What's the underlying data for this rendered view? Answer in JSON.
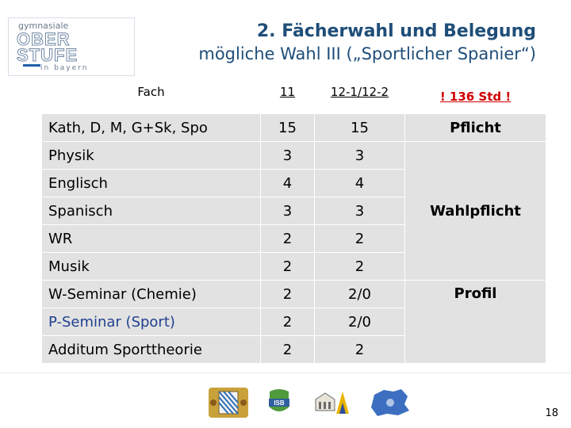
{
  "logo": {
    "line1": "gymnasiale",
    "line2": "OBER",
    "line3": "STUFE",
    "line4": "in bayern"
  },
  "title": {
    "line1": "2. Fächerwahl und Belegung",
    "line2": "mögliche Wahl  III („Sportlicher Spanier“)"
  },
  "table": {
    "headers": [
      "Fach",
      "11",
      "12-1/12-2",
      "! 136 Std !"
    ],
    "rows": [
      {
        "fach": "Kath, D, M, G+Sk, Spo",
        "y11": "15",
        "y12": "15"
      },
      {
        "fach": "Physik",
        "y11": "3",
        "y12": "3"
      },
      {
        "fach": "Englisch",
        "y11": "4",
        "y12": "4"
      },
      {
        "fach": "Spanisch",
        "y11": "3",
        "y12": "3"
      },
      {
        "fach": "WR",
        "y11": "2",
        "y12": "2"
      },
      {
        "fach": "Musik",
        "y11": "2",
        "y12": "2"
      },
      {
        "fach": "W-Seminar (Chemie)",
        "y11": "2",
        "y12": "2/0"
      },
      {
        "fach": "P-Seminar (Sport)",
        "y11": "2",
        "y12": "2/0"
      },
      {
        "fach": "Additum Sporttheorie",
        "y11": "2",
        "y12": "2"
      }
    ],
    "categories": [
      "Pflicht",
      "Wahlpflicht",
      "Profil"
    ]
  },
  "colors": {
    "title": "#1f4e79",
    "highlight": "#d00000",
    "cell_background": "#e2e2e2"
  },
  "footer": {
    "logos": [
      "bavarian-coat-of-arms-icon",
      "isb-logo-icon",
      "ministry-building-logo-icon",
      "map-region-logo-icon"
    ],
    "page_number": "18"
  }
}
